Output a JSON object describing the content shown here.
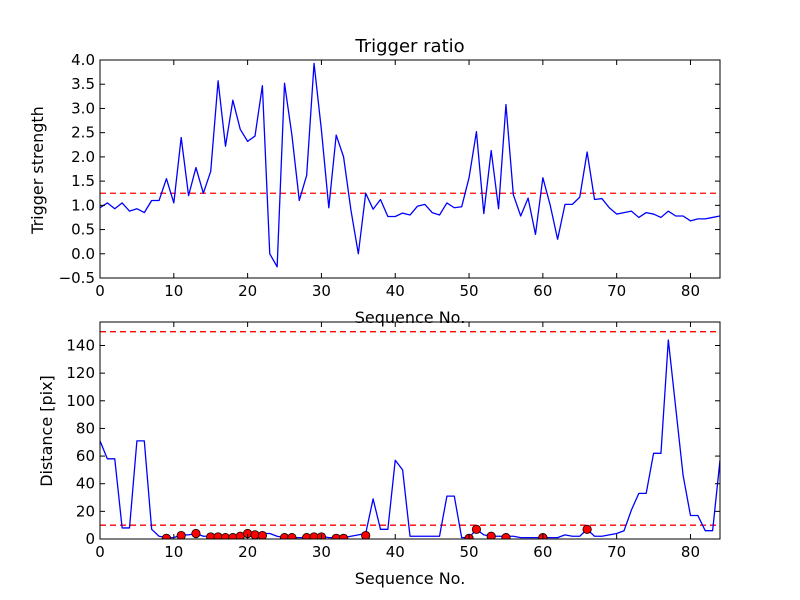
{
  "chart_data": [
    {
      "type": "line",
      "title": "Trigger ratio",
      "xlabel": "Sequence No.",
      "ylabel": "Trigger strength",
      "xlim": [
        0,
        84
      ],
      "ylim": [
        -0.5,
        4.0
      ],
      "xticks": [
        0,
        10,
        20,
        30,
        40,
        50,
        60,
        70,
        80
      ],
      "yticks": [
        -0.5,
        0.0,
        0.5,
        1.0,
        1.5,
        2.0,
        2.5,
        3.0,
        3.5,
        4.0
      ],
      "xtick_labels": [
        "0",
        "10",
        "20",
        "30",
        "40",
        "50",
        "60",
        "70",
        "80"
      ],
      "ytick_labels": [
        "−0.5",
        "0.0",
        "0.5",
        "1.0",
        "1.5",
        "2.0",
        "2.5",
        "3.0",
        "3.5",
        "4.0"
      ],
      "grid": false,
      "series": [
        {
          "color": "#0000ff",
          "x": [
            0,
            1,
            2,
            3,
            4,
            5,
            6,
            7,
            8,
            9,
            10,
            11,
            12,
            13,
            14,
            15,
            16,
            17,
            18,
            19,
            20,
            21,
            22,
            23,
            24,
            25,
            26,
            27,
            28,
            29,
            30,
            31,
            32,
            33,
            34,
            35,
            36,
            37,
            38,
            39,
            40,
            41,
            42,
            43,
            44,
            45,
            46,
            47,
            48,
            49,
            50,
            51,
            52,
            53,
            54,
            55,
            56,
            57,
            58,
            59,
            60,
            61,
            62,
            63,
            64,
            65,
            66,
            67,
            68,
            69,
            70,
            71,
            72,
            73,
            74,
            75,
            76,
            77,
            78,
            79,
            80,
            81,
            82,
            83,
            84
          ],
          "values": [
            0.95,
            1.05,
            0.93,
            1.05,
            0.88,
            0.93,
            0.85,
            1.1,
            1.1,
            1.55,
            1.05,
            2.4,
            1.2,
            1.78,
            1.25,
            1.7,
            3.57,
            2.22,
            3.17,
            2.57,
            2.32,
            2.43,
            3.47,
            0.0,
            -0.27,
            3.52,
            2.45,
            1.1,
            1.62,
            3.93,
            2.55,
            0.95,
            2.45,
            2.0,
            0.9,
            0.0,
            1.25,
            0.92,
            1.12,
            0.77,
            0.77,
            0.84,
            0.8,
            0.98,
            1.02,
            0.85,
            0.8,
            1.05,
            0.95,
            0.97,
            1.57,
            2.52,
            0.83,
            2.13,
            0.93,
            3.08,
            1.22,
            0.78,
            1.15,
            0.4,
            1.57,
            1.0,
            0.3,
            1.02,
            1.02,
            1.17,
            2.1,
            1.12,
            1.14,
            0.95,
            0.82,
            0.85,
            0.88,
            0.75,
            0.85,
            0.82,
            0.75,
            0.88,
            0.78,
            0.78,
            0.68,
            0.72,
            0.72,
            0.75,
            0.78
          ]
        }
      ],
      "threshold_lines": [
        {
          "y": 1.25,
          "color": "#ff0000",
          "style": "dashed"
        }
      ]
    },
    {
      "type": "line",
      "title": "",
      "xlabel": "Sequence No.",
      "ylabel": "Distance [pix]",
      "xlim": [
        0,
        84
      ],
      "ylim": [
        0,
        157
      ],
      "xticks": [
        0,
        10,
        20,
        30,
        40,
        50,
        60,
        70,
        80
      ],
      "yticks": [
        0,
        20,
        40,
        60,
        80,
        100,
        120,
        140
      ],
      "xtick_labels": [
        "0",
        "10",
        "20",
        "30",
        "40",
        "50",
        "60",
        "70",
        "80"
      ],
      "ytick_labels": [
        "0",
        "20",
        "40",
        "60",
        "80",
        "100",
        "120",
        "140"
      ],
      "grid": false,
      "series": [
        {
          "color": "#0000ff",
          "x": [
            0,
            1,
            2,
            3,
            4,
            5,
            6,
            7,
            8,
            9,
            10,
            11,
            12,
            13,
            14,
            15,
            16,
            17,
            18,
            19,
            20,
            21,
            22,
            23,
            24,
            25,
            26,
            27,
            28,
            29,
            30,
            31,
            32,
            33,
            34,
            35,
            36,
            37,
            38,
            39,
            40,
            41,
            42,
            43,
            44,
            45,
            46,
            47,
            48,
            49,
            50,
            51,
            52,
            53,
            54,
            55,
            56,
            57,
            58,
            59,
            60,
            61,
            62,
            63,
            64,
            65,
            66,
            67,
            68,
            69,
            70,
            71,
            72,
            73,
            74,
            75,
            76,
            77,
            78,
            79,
            80,
            81,
            82,
            83,
            84
          ],
          "values": [
            71,
            58,
            58,
            8,
            8,
            71,
            71,
            7,
            2,
            1,
            1,
            3,
            3,
            4,
            2,
            2,
            1,
            1,
            2,
            3,
            4,
            4,
            4,
            4,
            2,
            1,
            1,
            1,
            1,
            2,
            2,
            1,
            1,
            1,
            2,
            3,
            4,
            29,
            7,
            7,
            57,
            50,
            2,
            2,
            2,
            2,
            2,
            31,
            31,
            1,
            1,
            7,
            3,
            2,
            2,
            2,
            2,
            1,
            1,
            1,
            1,
            1,
            1,
            3,
            2,
            2,
            7,
            2,
            2,
            3,
            4,
            6,
            21,
            33,
            33,
            62,
            62,
            144,
            95,
            46,
            17,
            17,
            6,
            6,
            57
          ]
        }
      ],
      "markers": {
        "color": "#ff0000",
        "x": [
          9,
          11,
          13,
          15,
          16,
          17,
          18,
          19,
          20,
          21,
          22,
          25,
          26,
          28,
          29,
          30,
          32,
          33,
          36,
          50,
          51,
          53,
          55,
          60,
          66
        ],
        "values": [
          0.5,
          2.5,
          4,
          1.5,
          1.5,
          1,
          1,
          2,
          4,
          3,
          2.5,
          1,
          1,
          1,
          1.5,
          1.5,
          0.5,
          0.5,
          2.5,
          0.5,
          7,
          2,
          1,
          1,
          7
        ]
      },
      "threshold_lines": [
        {
          "y": 150,
          "color": "#ff0000",
          "style": "dashed"
        },
        {
          "y": 10,
          "color": "#ff0000",
          "style": "dashed"
        }
      ]
    }
  ]
}
